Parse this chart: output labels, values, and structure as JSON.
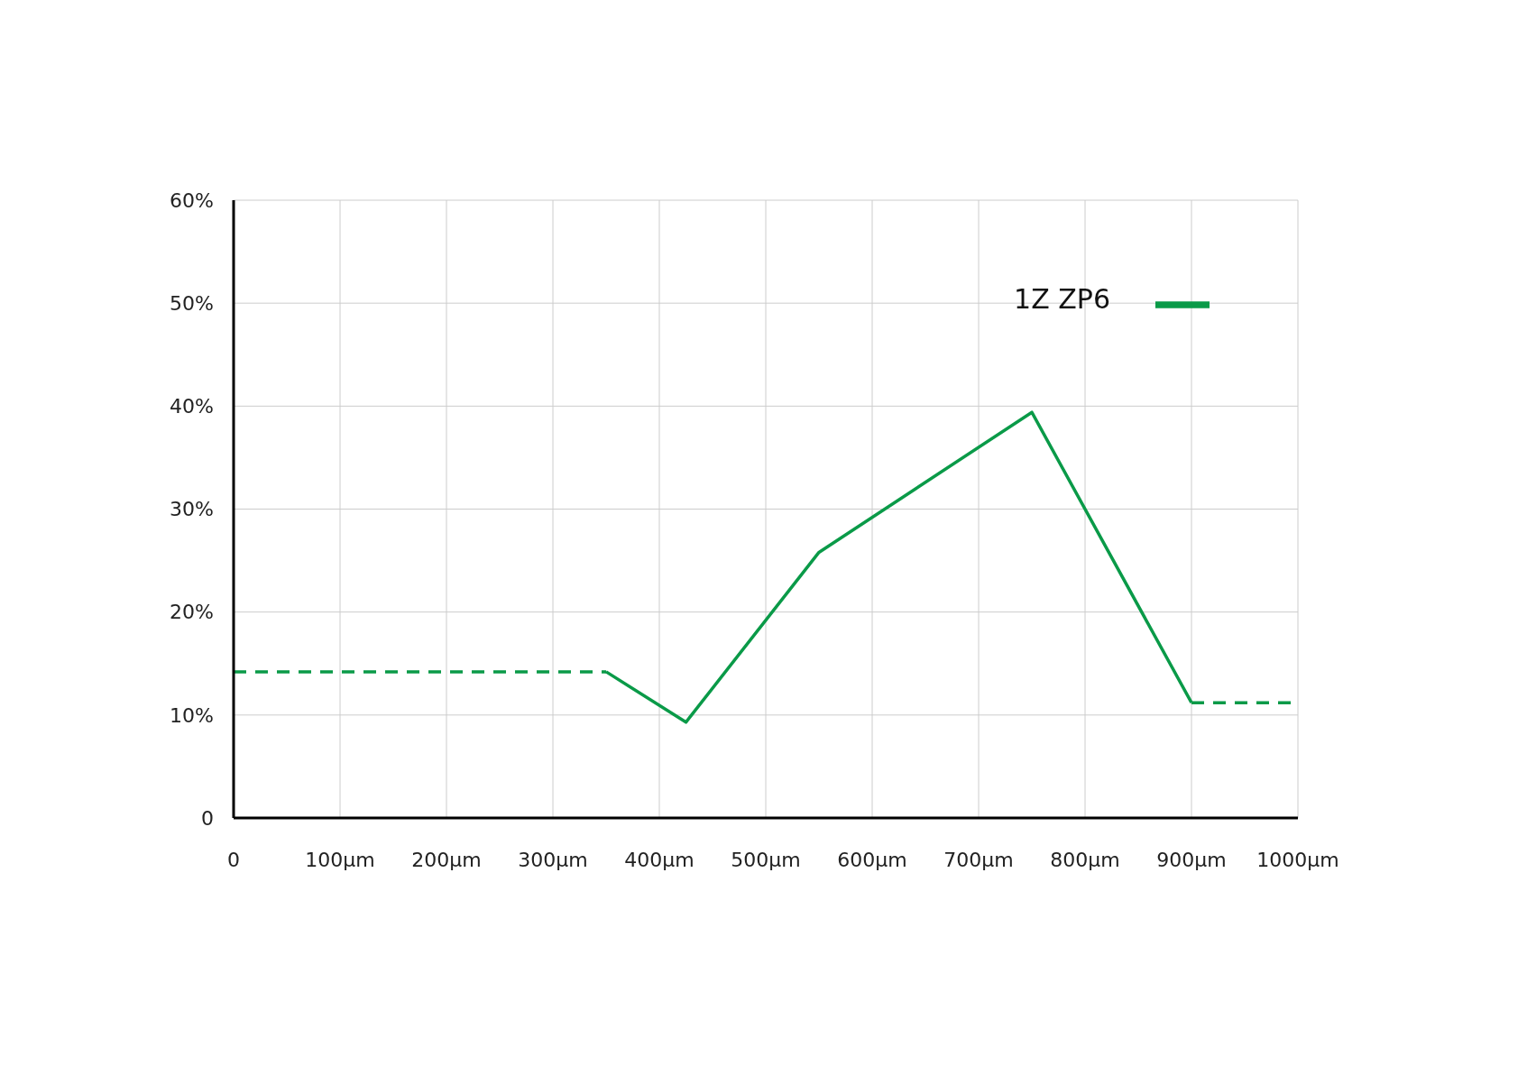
{
  "chart_data": {
    "type": "line",
    "series": [
      {
        "color": "#0a9a48",
        "line_style": "dashed",
        "x": [
          0,
          350
        ],
        "values": [
          14.2,
          14.2
        ]
      },
      {
        "name": "1Z ZP6",
        "color": "#0a9a48",
        "line_style": "solid",
        "x": [
          350,
          425,
          550,
          750,
          900
        ],
        "values": [
          14.2,
          9.3,
          25.8,
          39.4,
          11.2
        ]
      },
      {
        "color": "#0a9a48",
        "line_style": "dashed",
        "x": [
          900,
          1000
        ],
        "values": [
          11.2,
          11.2
        ]
      }
    ],
    "xlim": [
      0,
      1000
    ],
    "xticks": [
      0,
      {
        "value": 100,
        "label": "100µm"
      },
      {
        "value": 200,
        "label": "200µm"
      },
      {
        "value": 300,
        "label": "300µm"
      },
      {
        "value": 400,
        "label": "400µm"
      },
      {
        "value": 500,
        "label": "500µm"
      },
      {
        "value": 600,
        "label": "600µm"
      },
      {
        "value": 700,
        "label": "700µm"
      },
      {
        "value": 800,
        "label": "800µm"
      },
      {
        "value": 900,
        "label": "900µm"
      },
      {
        "value": 1000,
        "label": "1000µm"
      }
    ],
    "ylim": [
      0,
      60
    ],
    "yticks": [
      0,
      {
        "value": 10,
        "label": "10%"
      },
      {
        "value": 20,
        "label": "20%"
      },
      {
        "value": 30,
        "label": "30%"
      },
      {
        "value": 40,
        "label": "40%"
      },
      {
        "value": 50,
        "label": "50%"
      },
      {
        "value": 60,
        "label": "60%"
      }
    ],
    "grid": true,
    "legend": "top right"
  }
}
